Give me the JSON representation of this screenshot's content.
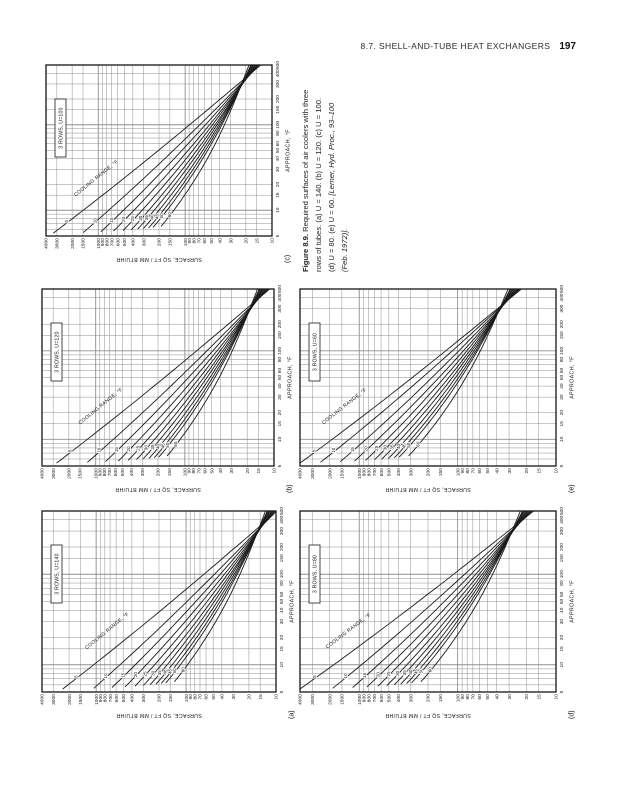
{
  "page": {
    "header_title": "8.7. SHELL-AND-TUBE HEAT EXCHANGERS",
    "page_number": "197"
  },
  "caption": {
    "figure_label": "Figure 8.9.",
    "line1_rest": " Required surfaces of air coolers with three",
    "line2": "rows of tubes. (a) U = 140. (b) U = 120. (c) U = 100.",
    "line3_plain": "(d) U = 80. (e) U = 60. ",
    "line3_italic": "[Lerner, Hyd. Proc., 93–100",
    "line4_italic": "(Feb. 1972)]."
  },
  "chart_data": {
    "type": "line",
    "x_axis": {
      "label": "APPROACH, °F",
      "scale": "log",
      "range": [
        5,
        500
      ],
      "tick_labels": [
        5,
        10,
        15,
        20,
        30,
        40,
        50,
        60,
        80,
        100,
        150,
        200,
        300,
        400,
        500
      ]
    },
    "y_axis": {
      "label": "SURFACE, SQ FT / MM BTU/HR",
      "scale": "log",
      "range": [
        10,
        4000
      ],
      "tick_labels": [
        10,
        15,
        20,
        30,
        40,
        50,
        60,
        70,
        80,
        90,
        100,
        150,
        200,
        300,
        400,
        500,
        600,
        700,
        800,
        900,
        1000,
        1500,
        2000,
        3000,
        4000
      ]
    },
    "family_label": "COOLING RANGE, °F",
    "series_param": "cooling range, °F",
    "charts": [
      {
        "key": "a",
        "letter": "(a)",
        "box_label": "3 ROWS, U=140",
        "U": 140,
        "series": [
          {
            "range": 5,
            "p0": [
              5.4,
              2357
            ],
            "p1": [
              500,
              9.6
            ]
          },
          {
            "range": 10,
            "p0": [
              5.5,
              1063
            ],
            "p1": [
              500,
              9.9
            ]
          },
          {
            "range": 15,
            "p0": [
              5.6,
              667
            ],
            "p1": [
              500,
              10.3
            ]
          },
          {
            "range": 20,
            "p0": [
              5.7,
              478
            ],
            "p1": [
              500,
              10.6
            ]
          },
          {
            "range": 25,
            "p0": [
              5.8,
              370
            ],
            "p1": [
              500,
              10.9
            ]
          },
          {
            "range": 30,
            "p0": [
              5.9,
              299
            ],
            "p1": [
              500,
              11.2
            ]
          },
          {
            "range": 35,
            "p0": [
              6.0,
              252
            ],
            "p1": [
              500,
              11.6
            ]
          },
          {
            "range": 40,
            "p0": [
              6.1,
              216
            ],
            "p1": [
              500,
              11.9
            ]
          },
          {
            "range": 45,
            "p0": [
              6.2,
              189
            ],
            "p1": [
              500,
              12.2
            ]
          },
          {
            "range": 50,
            "p0": [
              6.3,
              168
            ],
            "p1": [
              500,
              12.5
            ]
          },
          {
            "range": 60,
            "p0": [
              6.5,
              135
            ],
            "p1": [
              500,
              13.1
            ]
          }
        ]
      },
      {
        "key": "b",
        "letter": "(b)",
        "box_label": "3 ROWS, U=120",
        "U": 120,
        "series": [
          {
            "range": 5,
            "p0": [
              5.4,
              2750
            ],
            "p1": [
              500,
              11.2
            ]
          },
          {
            "range": 10,
            "p0": [
              5.5,
              1240
            ],
            "p1": [
              500,
              11.6
            ]
          },
          {
            "range": 15,
            "p0": [
              5.6,
              778
            ],
            "p1": [
              500,
              12.0
            ]
          },
          {
            "range": 20,
            "p0": [
              5.7,
              558
            ],
            "p1": [
              500,
              12.3
            ]
          },
          {
            "range": 25,
            "p0": [
              5.8,
              432
            ],
            "p1": [
              500,
              12.7
            ]
          },
          {
            "range": 30,
            "p0": [
              5.9,
              349
            ],
            "p1": [
              500,
              13.1
            ]
          },
          {
            "range": 35,
            "p0": [
              6.0,
              294
            ],
            "p1": [
              500,
              13.5
            ]
          },
          {
            "range": 40,
            "p0": [
              6.1,
              252
            ],
            "p1": [
              500,
              13.8
            ]
          },
          {
            "range": 45,
            "p0": [
              6.2,
              220
            ],
            "p1": [
              500,
              14.2
            ]
          },
          {
            "range": 50,
            "p0": [
              6.3,
              196
            ],
            "p1": [
              500,
              14.6
            ]
          },
          {
            "range": 60,
            "p0": [
              6.5,
              158
            ],
            "p1": [
              500,
              15.3
            ]
          }
        ]
      },
      {
        "key": "c",
        "letter": "(c)",
        "box_label": "3 ROWS, U=100",
        "U": 100,
        "series": [
          {
            "range": 5,
            "p0": [
              5.4,
              3300
            ],
            "p1": [
              500,
              13.5
            ]
          },
          {
            "range": 10,
            "p0": [
              5.5,
              1488
            ],
            "p1": [
              500,
              13.9
            ]
          },
          {
            "range": 15,
            "p0": [
              5.6,
              934
            ],
            "p1": [
              500,
              14.4
            ]
          },
          {
            "range": 20,
            "p0": [
              5.7,
              670
            ],
            "p1": [
              500,
              14.8
            ]
          },
          {
            "range": 25,
            "p0": [
              5.8,
              518
            ],
            "p1": [
              500,
              15.3
            ]
          },
          {
            "range": 30,
            "p0": [
              5.9,
              419
            ],
            "p1": [
              500,
              15.7
            ]
          },
          {
            "range": 35,
            "p0": [
              6.0,
              353
            ],
            "p1": [
              500,
              16.2
            ]
          },
          {
            "range": 40,
            "p0": [
              6.1,
              303
            ],
            "p1": [
              500,
              16.6
            ]
          },
          {
            "range": 45,
            "p0": [
              6.2,
              264
            ],
            "p1": [
              500,
              17.1
            ]
          },
          {
            "range": 50,
            "p0": [
              6.3,
              235
            ],
            "p1": [
              500,
              17.5
            ]
          },
          {
            "range": 60,
            "p0": [
              6.5,
              189
            ],
            "p1": [
              500,
              18.4
            ]
          }
        ]
      },
      {
        "key": "d",
        "letter": "(d)",
        "box_label": "3 ROWS, U=80",
        "U": 80,
        "series": [
          {
            "range": 5,
            "p0": [
              5.4,
              4000
            ],
            "p1": [
              500,
              16.9
            ]
          },
          {
            "range": 10,
            "p0": [
              5.5,
              1860
            ],
            "p1": [
              500,
              17.4
            ]
          },
          {
            "range": 15,
            "p0": [
              5.6,
              1168
            ],
            "p1": [
              500,
              18.0
            ]
          },
          {
            "range": 20,
            "p0": [
              5.7,
              838
            ],
            "p1": [
              500,
              18.5
            ]
          },
          {
            "range": 25,
            "p0": [
              5.8,
              648
            ],
            "p1": [
              500,
              19.1
            ]
          },
          {
            "range": 30,
            "p0": [
              5.9,
              524
            ],
            "p1": [
              500,
              19.6
            ]
          },
          {
            "range": 35,
            "p0": [
              6.0,
              441
            ],
            "p1": [
              500,
              20.2
            ]
          },
          {
            "range": 40,
            "p0": [
              6.1,
              379
            ],
            "p1": [
              500,
              20.8
            ]
          },
          {
            "range": 45,
            "p0": [
              6.2,
              330
            ],
            "p1": [
              500,
              21.4
            ]
          },
          {
            "range": 50,
            "p0": [
              6.3,
              294
            ],
            "p1": [
              500,
              21.9
            ]
          },
          {
            "range": 60,
            "p0": [
              6.5,
              236
            ],
            "p1": [
              500,
              23.0
            ]
          }
        ]
      },
      {
        "key": "e",
        "letter": "(e)",
        "box_label": "3 ROWS, U=60",
        "U": 60,
        "series": [
          {
            "range": 5,
            "p0": [
              5.4,
              4000
            ],
            "p1": [
              500,
              22.5
            ]
          },
          {
            "range": 10,
            "p0": [
              5.5,
              2480
            ],
            "p1": [
              500,
              23.2
            ]
          },
          {
            "range": 15,
            "p0": [
              5.6,
              1557
            ],
            "p1": [
              500,
              24.0
            ]
          },
          {
            "range": 20,
            "p0": [
              5.7,
              1117
            ],
            "p1": [
              500,
              24.7
            ]
          },
          {
            "range": 25,
            "p0": [
              5.8,
              863
            ],
            "p1": [
              500,
              25.5
            ]
          },
          {
            "range": 30,
            "p0": [
              5.9,
              698
            ],
            "p1": [
              500,
              26.2
            ]
          },
          {
            "range": 35,
            "p0": [
              6.0,
              588
            ],
            "p1": [
              500,
              27.0
            ]
          },
          {
            "range": 40,
            "p0": [
              6.1,
              505
            ],
            "p1": [
              500,
              27.7
            ]
          },
          {
            "range": 45,
            "p0": [
              6.2,
              440
            ],
            "p1": [
              500,
              28.5
            ]
          },
          {
            "range": 50,
            "p0": [
              6.3,
              392
            ],
            "p1": [
              500,
              29.2
            ]
          },
          {
            "range": 60,
            "p0": [
              6.5,
              315
            ],
            "p1": [
              500,
              30.7
            ]
          }
        ]
      }
    ]
  }
}
